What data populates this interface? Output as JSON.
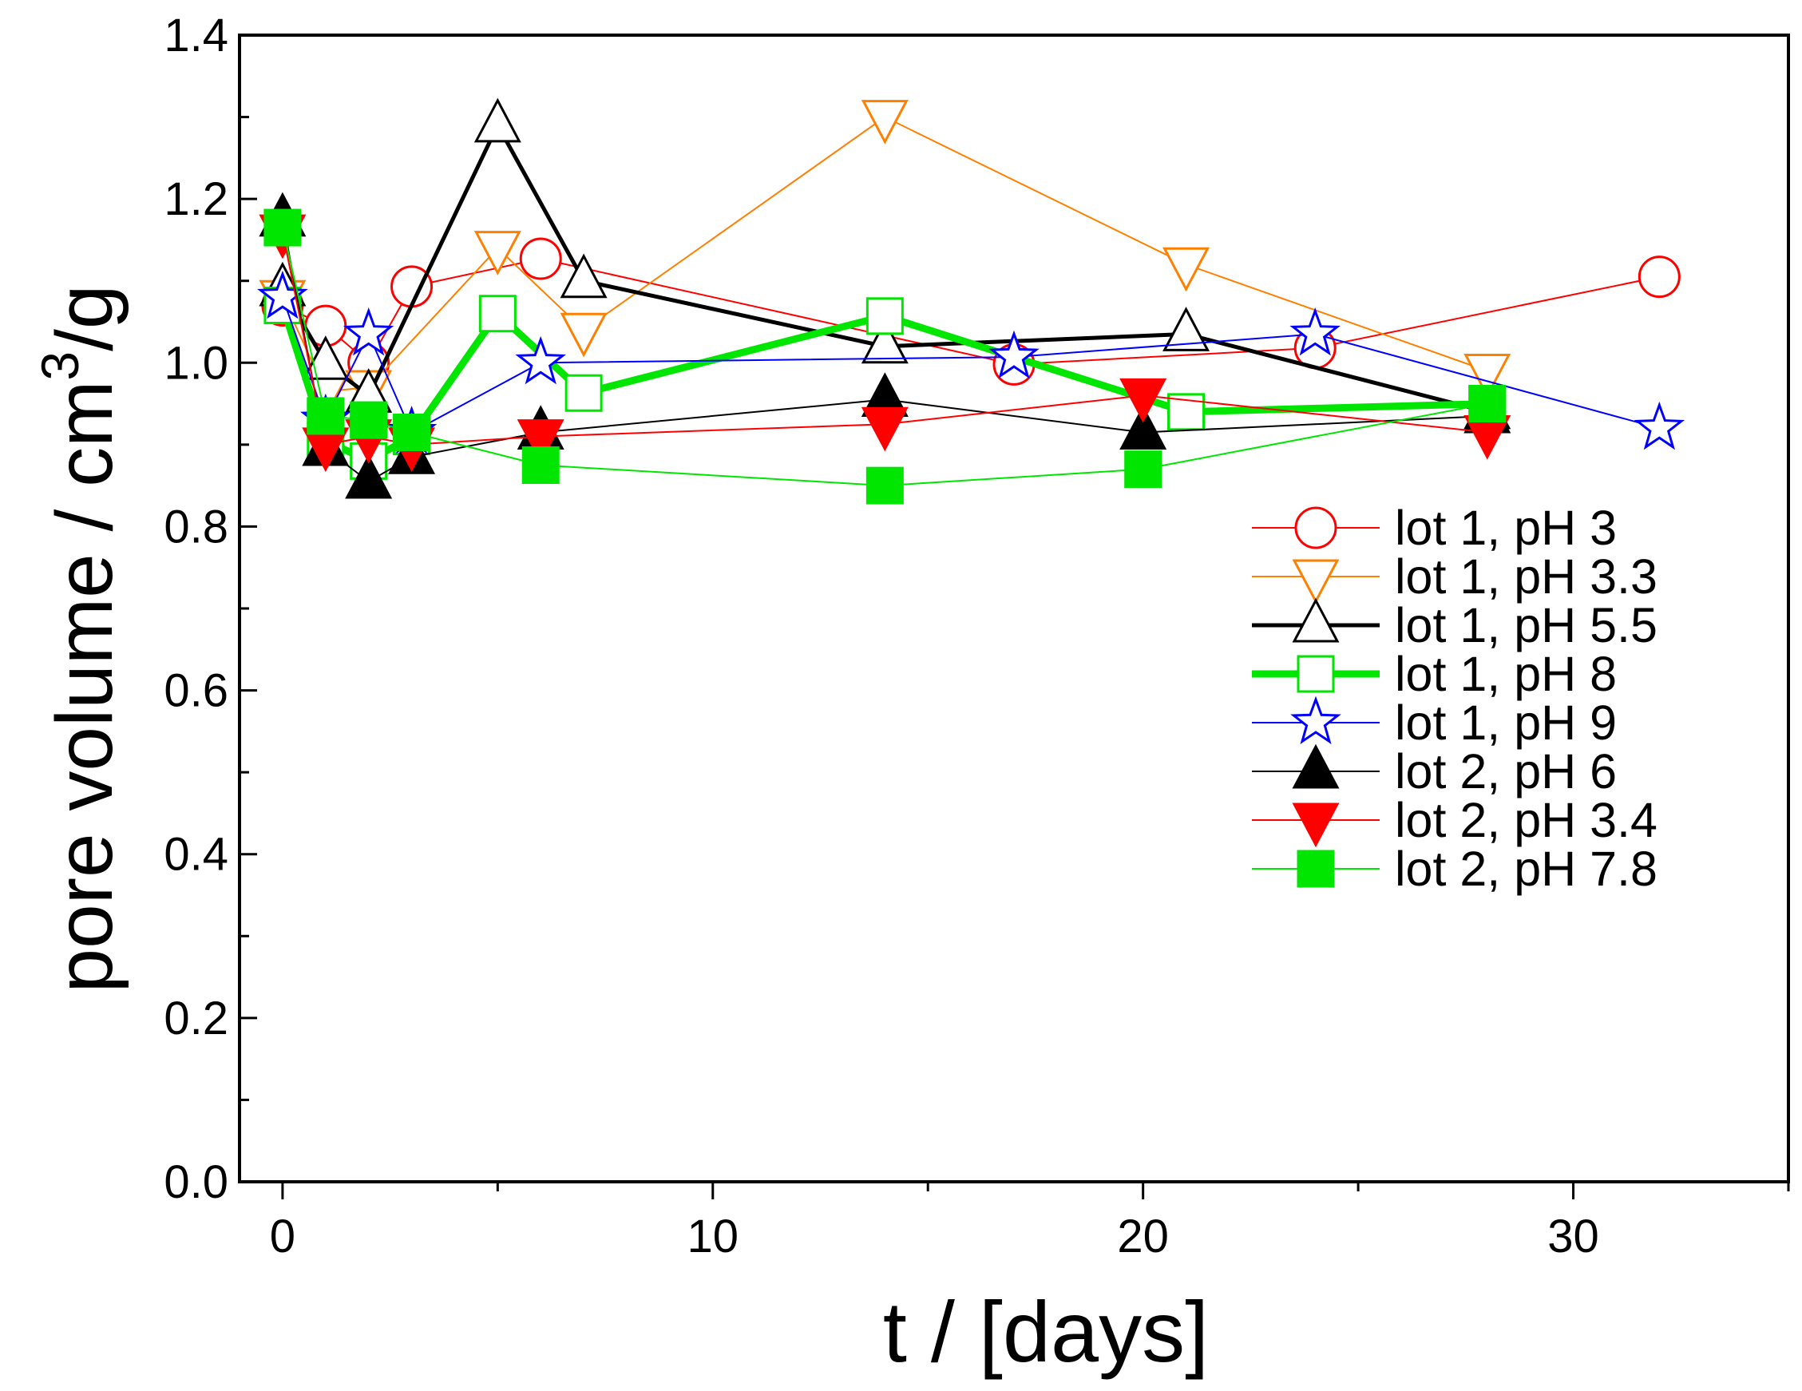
{
  "chart_data": {
    "type": "line",
    "title": "",
    "xlabel": "t / [days]",
    "ylabel": {
      "main": "pore volume / cm",
      "superscript": "3",
      "suffix": "/g"
    },
    "xlim": [
      -1,
      35
    ],
    "ylim": [
      0,
      1.4
    ],
    "xticks": [
      0,
      10,
      20,
      30
    ],
    "xtick_labels": [
      "0",
      "10",
      "20",
      "30"
    ],
    "x_minor_ticks": [
      5,
      15,
      25,
      35
    ],
    "yticks": [
      0,
      0.2,
      0.4,
      0.6,
      0.8,
      1.0,
      1.2,
      1.4
    ],
    "ytick_labels": [
      "0.0",
      "0.2",
      "0.4",
      "0.6",
      "0.8",
      "1.0",
      "1.2",
      "1.4"
    ],
    "y_minor_ticks": [
      0.1,
      0.3,
      0.5,
      0.7,
      0.9,
      1.1,
      1.3
    ],
    "grid": false,
    "legend_position": "right",
    "series": [
      {
        "name": "lot 1, pH 3",
        "color": "#ff0000",
        "marker": "circle",
        "filled": false,
        "line_width": 2,
        "x": [
          0,
          1,
          2,
          3,
          6,
          17,
          24,
          32
        ],
        "y": [
          1.07,
          1.045,
          1.0,
          1.093,
          1.127,
          0.998,
          1.018,
          1.105
        ]
      },
      {
        "name": "lot 1, pH 3.3",
        "color": "#ff8000",
        "marker": "triangle-down",
        "filled": false,
        "line_width": 2,
        "x": [
          0,
          1,
          2,
          5,
          7,
          14,
          21,
          28
        ],
        "y": [
          1.08,
          0.965,
          0.97,
          1.14,
          1.04,
          1.3,
          1.12,
          0.99
        ]
      },
      {
        "name": "lot 1, pH 5.5",
        "color": "#000000",
        "marker": "triangle-up",
        "filled": false,
        "line_width": 5,
        "x": [
          0,
          1,
          2,
          5,
          7,
          14,
          21,
          28
        ],
        "y": [
          1.09,
          1.0,
          0.96,
          1.29,
          1.1,
          1.02,
          1.035,
          0.94
        ]
      },
      {
        "name": "lot 1, pH 8",
        "color": "#00e600",
        "marker": "square",
        "filled": false,
        "line_width": 9,
        "x": [
          0,
          1,
          2,
          3,
          5,
          7,
          14,
          21,
          28
        ],
        "y": [
          1.07,
          0.905,
          0.88,
          0.91,
          1.06,
          0.963,
          1.057,
          0.94,
          0.95
        ]
      },
      {
        "name": "lot 1, pH 9",
        "color": "#0000ff",
        "marker": "star",
        "filled": false,
        "line_width": 2,
        "x": [
          0,
          1,
          2,
          3,
          6,
          17,
          24,
          32
        ],
        "y": [
          1.08,
          0.93,
          1.035,
          0.915,
          1.0,
          1.007,
          1.035,
          0.92
        ]
      },
      {
        "name": "lot 2, pH 6",
        "color": "#000000",
        "marker": "triangle-up",
        "filled": true,
        "line_width": 2,
        "x": [
          0,
          1,
          2,
          3,
          6,
          14,
          20,
          28
        ],
        "y": [
          1.175,
          0.895,
          0.855,
          0.885,
          0.915,
          0.955,
          0.915,
          0.935
        ]
      },
      {
        "name": "lot 2, pH 3.4",
        "color": "#ff0000",
        "marker": "triangle-down",
        "filled": true,
        "line_width": 2,
        "x": [
          0,
          1,
          2,
          3,
          6,
          14,
          20,
          28
        ],
        "y": [
          1.16,
          0.9,
          0.91,
          0.9,
          0.91,
          0.925,
          0.96,
          0.915
        ]
      },
      {
        "name": "lot 2, pH 7.8",
        "color": "#00e600",
        "marker": "square",
        "filled": true,
        "line_width": 2,
        "x": [
          0,
          1,
          2,
          3,
          6,
          14,
          20,
          28
        ],
        "y": [
          1.165,
          0.935,
          0.93,
          0.915,
          0.875,
          0.85,
          0.87,
          0.95
        ]
      }
    ]
  }
}
